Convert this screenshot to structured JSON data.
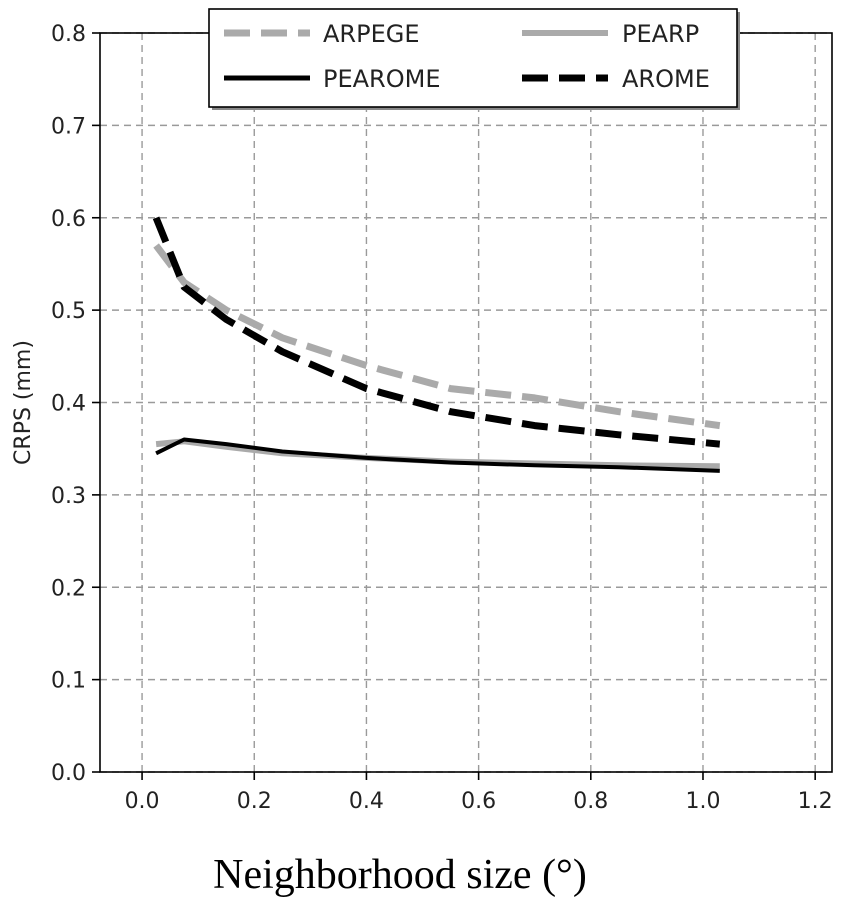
{
  "chart_data": {
    "type": "line",
    "title": "",
    "xlabel": "Neighborhood size (°)",
    "ylabel": "CRPS (mm)",
    "xlim": [
      -0.075,
      1.23
    ],
    "ylim": [
      0.0,
      0.8
    ],
    "xticks": [
      0.0,
      0.2,
      0.4,
      0.6,
      0.8,
      1.0,
      1.2
    ],
    "xtick_labels": [
      "0.0",
      "0.2",
      "0.4",
      "0.6",
      "0.8",
      "1.0",
      "1.2"
    ],
    "yticks": [
      0.0,
      0.1,
      0.2,
      0.3,
      0.4,
      0.5,
      0.6,
      0.7,
      0.8
    ],
    "ytick_labels": [
      "0.0",
      "0.1",
      "0.2",
      "0.3",
      "0.4",
      "0.5",
      "0.6",
      "0.7",
      "0.8"
    ],
    "grid": true,
    "legend": {
      "placement": "top-center",
      "columns": 2
    },
    "series": [
      {
        "name": "ARPEGE",
        "color": "#aaaaaa",
        "style": "dashed",
        "x": [
          0.025,
          0.075,
          0.15,
          0.25,
          0.4,
          0.55,
          0.7,
          0.85,
          1.03
        ],
        "y": [
          0.57,
          0.53,
          0.5,
          0.47,
          0.44,
          0.415,
          0.405,
          0.39,
          0.375
        ]
      },
      {
        "name": "PEARP",
        "color": "#aaaaaa",
        "style": "solid",
        "x": [
          0.025,
          0.075,
          0.15,
          0.25,
          0.4,
          0.55,
          0.7,
          0.85,
          1.03
        ],
        "y": [
          0.355,
          0.358,
          0.352,
          0.345,
          0.34,
          0.336,
          0.334,
          0.332,
          0.331
        ]
      },
      {
        "name": "PEAROME",
        "color": "#000000",
        "style": "solid",
        "x": [
          0.025,
          0.075,
          0.15,
          0.25,
          0.4,
          0.55,
          0.7,
          0.85,
          1.03
        ],
        "y": [
          0.345,
          0.36,
          0.355,
          0.347,
          0.34,
          0.335,
          0.332,
          0.33,
          0.326
        ]
      },
      {
        "name": "AROME",
        "color": "#000000",
        "style": "dashed",
        "x": [
          0.025,
          0.075,
          0.15,
          0.25,
          0.4,
          0.55,
          0.7,
          0.85,
          1.03
        ],
        "y": [
          0.6,
          0.525,
          0.49,
          0.455,
          0.415,
          0.39,
          0.375,
          0.365,
          0.355
        ]
      }
    ]
  }
}
